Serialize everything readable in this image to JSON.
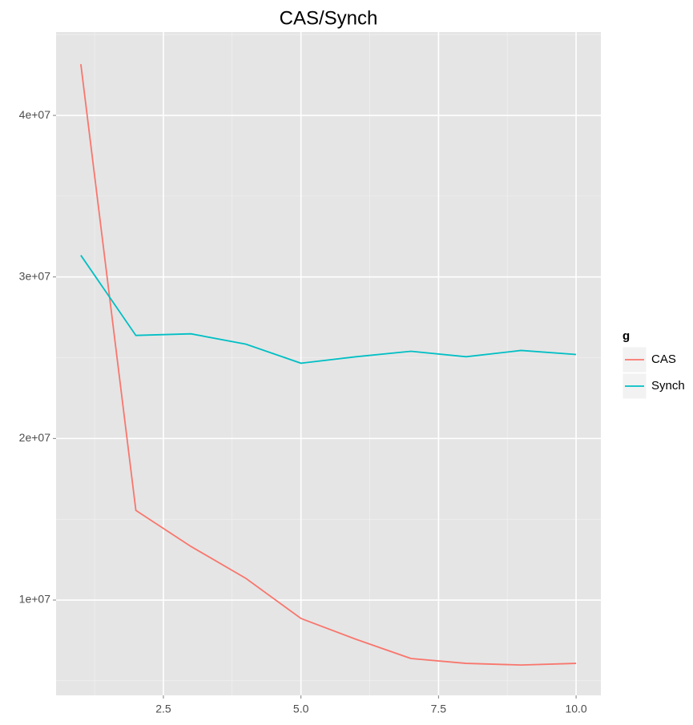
{
  "chart_data": {
    "type": "line",
    "title": "CAS/Synch",
    "x": [
      1,
      2,
      3,
      4,
      5,
      6,
      7,
      8,
      9,
      10
    ],
    "series": [
      {
        "name": "CAS",
        "color": "#F8766D",
        "values": [
          43170000,
          15550000,
          13320000,
          11340000,
          8860000,
          7570000,
          6380000,
          6080000,
          5980000,
          6080000
        ]
      },
      {
        "name": "Synch",
        "color": "#00BFC4",
        "values": [
          31340000,
          26380000,
          26480000,
          25840000,
          24660000,
          25060000,
          25400000,
          25060000,
          25450000,
          25200000
        ]
      }
    ],
    "xlim": [
      0.55,
      10.45
    ],
    "xticks": [
      2.5,
      {
        "value": 5,
        "label": "5.0"
      },
      7.5,
      {
        "value": 10,
        "label": "10.0"
      }
    ],
    "ylim": [
      4100000,
      45160000
    ],
    "yticks": [
      {
        "value": 10000000,
        "label": "1e+07"
      },
      {
        "value": 20000000,
        "label": "2e+07"
      },
      {
        "value": 30000000,
        "label": "3e+07"
      },
      {
        "value": 40000000,
        "label": "4e+07"
      }
    ],
    "grid": true,
    "legend_title": "g",
    "legend_position": "right"
  }
}
